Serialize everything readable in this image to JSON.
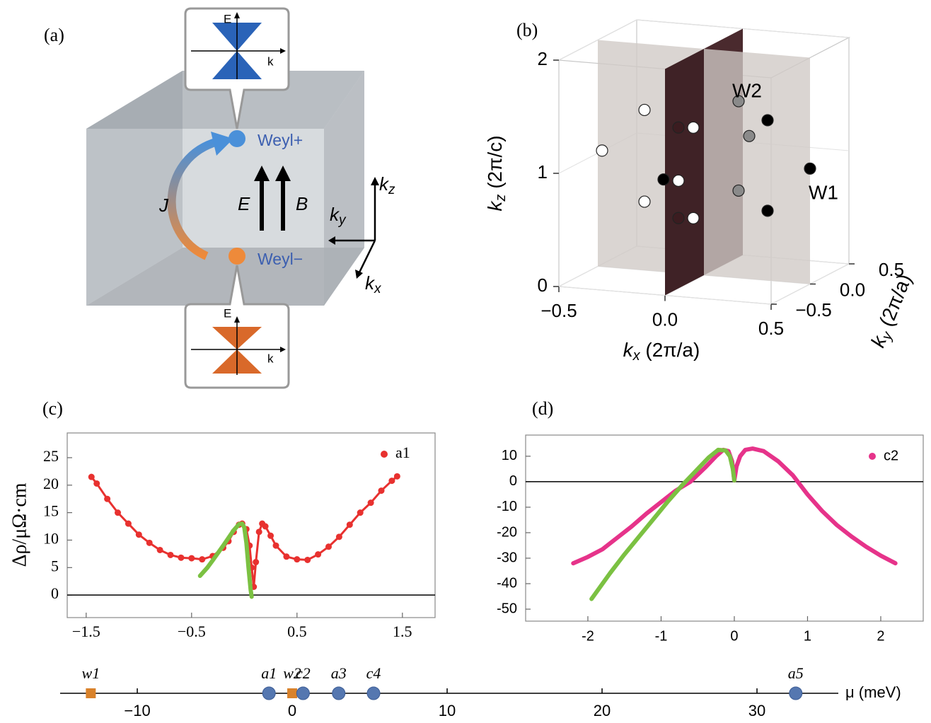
{
  "panel_a": {
    "label": "(a)",
    "top_inset": {
      "energy": "E",
      "momentum": "k"
    },
    "bottom_inset": {
      "energy": "E",
      "momentum": "k"
    },
    "weyl_plus": "Weyl+",
    "weyl_minus": "Weyl−",
    "current": "J",
    "electric_field": "E",
    "magnetic_field": "B",
    "kz": {
      "main": "k",
      "sub": "z"
    },
    "ky": {
      "main": "k",
      "sub": "y"
    },
    "kx": {
      "main": "k",
      "sub": "x"
    }
  },
  "chart_data": [
    {
      "type": "scatter3d",
      "panel_label": "(b)",
      "xlabel": {
        "main": "k",
        "sub": "x",
        "rest": " (2π/a)"
      },
      "ylabel": {
        "main": "k",
        "sub": "y",
        "rest": " (2π/a)"
      },
      "zlabel": {
        "main": "k",
        "sub": "z",
        "rest": " (2π/c)"
      },
      "xlim": [
        -0.5,
        0.5
      ],
      "ylim": [
        -0.5,
        0.5
      ],
      "zlim": [
        0,
        2
      ],
      "xticks": [
        {
          "value": -0.5,
          "label": "−0.5"
        },
        {
          "value": 0,
          "label": "0.0"
        },
        0.5
      ],
      "yticks": [
        {
          "value": -0.5,
          "label": "−0.5"
        },
        {
          "value": 0,
          "label": "0.0"
        },
        0.5
      ],
      "zticks": [
        0,
        1,
        2
      ],
      "annotations": [
        "W2",
        "W1"
      ],
      "series": [
        {
          "color": "#3b1c20",
          "x": [
            -0.01,
            -0.01
          ],
          "y": [
            -0.3,
            -0.3
          ],
          "z": [
            1.41,
            0.61
          ]
        },
        {
          "color": "#8a8a8a",
          "x": [
            0.09,
            0.14,
            0.09
          ],
          "y": [
            0.2,
            0.2,
            0.2
          ],
          "z": [
            1.48,
            1.18,
            0.69
          ]
        },
        {
          "color": "#ffffff",
          "x": [
            -0.37,
            -0.17,
            -0.17,
            -0.01,
            0.06,
            0.06
          ],
          "y": [
            -0.3,
            -0.3,
            -0.3,
            -0.3,
            -0.3,
            -0.3
          ],
          "z": [
            1.15,
            1.54,
            0.73,
            0.94,
            1.42,
            0.62
          ]
        },
        {
          "color": "#000000",
          "x": [
            -0.08,
            0.41,
            0.41,
            0.5
          ],
          "y": [
            -0.3,
            -0.3,
            -0.3,
            0.0
          ],
          "z": [
            0.94,
            1.54,
            0.74,
            1.02
          ]
        }
      ]
    },
    {
      "type": "line",
      "panel_label": "(c)",
      "ylabel": "Δρ/μΩ·cm",
      "xlim": [
        -1.68,
        1.81
      ],
      "ylim": [
        -4.1,
        29.5
      ],
      "xticks": [
        {
          "value": -1.5,
          "label": "−1.5"
        },
        {
          "value": -0.5,
          "label": "−0.5"
        },
        0.5,
        1.5
      ],
      "yticks": [
        0,
        5,
        10,
        15,
        20,
        25
      ],
      "zero_line": true,
      "legend": "upper right",
      "series": [
        {
          "name": "a1",
          "color": "#e8312f",
          "mode": "markers",
          "x": [
            -1.45,
            -1.4,
            -1.3,
            -1.2,
            -1.1,
            -1.0,
            -0.9,
            -0.8,
            -0.7,
            -0.6,
            -0.5,
            -0.4,
            -0.3,
            -0.2,
            -0.15,
            -0.1,
            -0.05,
            -0.02,
            0.02,
            0.05,
            0.07,
            0.09,
            0.11,
            0.14,
            0.17,
            0.2,
            0.25,
            0.3,
            0.4,
            0.5,
            0.6,
            0.7,
            0.8,
            0.9,
            1.0,
            1.1,
            1.2,
            1.3,
            1.4,
            1.45
          ],
          "values": [
            21.5,
            20.3,
            17.5,
            15.0,
            13.0,
            11.0,
            9.5,
            8.2,
            7.3,
            6.8,
            6.7,
            6.5,
            7.1,
            8.6,
            9.8,
            11.5,
            12.8,
            13.0,
            12.0,
            9.0,
            5.0,
            1.5,
            6.0,
            11.5,
            13.0,
            12.5,
            10.8,
            9.0,
            7.0,
            6.5,
            6.4,
            7.4,
            8.8,
            10.6,
            12.8,
            15.0,
            16.8,
            19.0,
            20.8,
            21.6
          ]
        },
        {
          "color": "#7bc142",
          "mode": "line",
          "x": [
            -0.42,
            -0.35,
            -0.3,
            -0.2,
            -0.1,
            -0.05,
            -0.02,
            0.0,
            0.02,
            0.04,
            0.06,
            0.07
          ],
          "values": [
            3.5,
            5.0,
            6.3,
            9.0,
            11.8,
            12.9,
            13.0,
            12.3,
            9.5,
            5.0,
            1.0,
            -0.3
          ]
        }
      ]
    },
    {
      "type": "line",
      "panel_label": "(d)",
      "xlim": [
        -2.85,
        2.58
      ],
      "ylim": [
        -54.7,
        18.3
      ],
      "xticks": [
        -2,
        -1,
        0,
        1,
        2
      ],
      "yticks": [
        -50,
        -40,
        -30,
        -20,
        -10,
        0,
        10
      ],
      "zero_line": true,
      "legend": "upper right",
      "series": [
        {
          "name": "c2",
          "color": "#e6338a",
          "mode": "line",
          "x": [
            -2.2,
            -2.0,
            -1.8,
            -1.6,
            -1.4,
            -1.2,
            -1.0,
            -0.8,
            -0.6,
            -0.4,
            -0.25,
            -0.15,
            -0.08,
            -0.03,
            0,
            0.03,
            0.08,
            0.15,
            0.25,
            0.4,
            0.6,
            0.8,
            1.0,
            1.2,
            1.4,
            1.6,
            1.8,
            2.0,
            2.2
          ],
          "values": [
            -32,
            -29.5,
            -26.5,
            -22,
            -17.5,
            -12.5,
            -8,
            -3.5,
            0,
            5.5,
            10,
            12.5,
            12,
            8,
            0.5,
            6,
            10,
            12.5,
            13,
            12,
            8,
            2.5,
            -5,
            -11.5,
            -17,
            -21.5,
            -25.5,
            -29,
            -32
          ]
        },
        {
          "color": "#7bc142",
          "mode": "line",
          "x": [
            -1.95,
            -1.7,
            -1.5,
            -1.3,
            -1.1,
            -0.9,
            -0.7,
            -0.5,
            -0.35,
            -0.22,
            -0.12,
            -0.06,
            -0.02,
            0
          ],
          "values": [
            -46,
            -36,
            -28.5,
            -21.5,
            -14.5,
            -7.5,
            -1,
            5,
            9.5,
            12.5,
            12.3,
            10,
            5,
            0.5
          ]
        }
      ]
    },
    {
      "type": "strip",
      "xlabel": "μ (meV)",
      "xlim": [
        -14.98,
        35.25
      ],
      "xticks": [
        {
          "value": -10,
          "label": "−10"
        },
        0,
        10,
        20,
        30
      ],
      "series": [
        {
          "marker": "square",
          "color": "#d9822b",
          "labels": [
            "w1",
            "w2"
          ],
          "values": [
            -13.0,
            0.0
          ]
        },
        {
          "marker": "circle",
          "color": "#5577b0",
          "labels": [
            "a1",
            "c2",
            "a3",
            "c4",
            "a5"
          ],
          "values": [
            -1.5,
            0.7,
            3.0,
            5.25,
            32.5
          ]
        }
      ]
    }
  ]
}
